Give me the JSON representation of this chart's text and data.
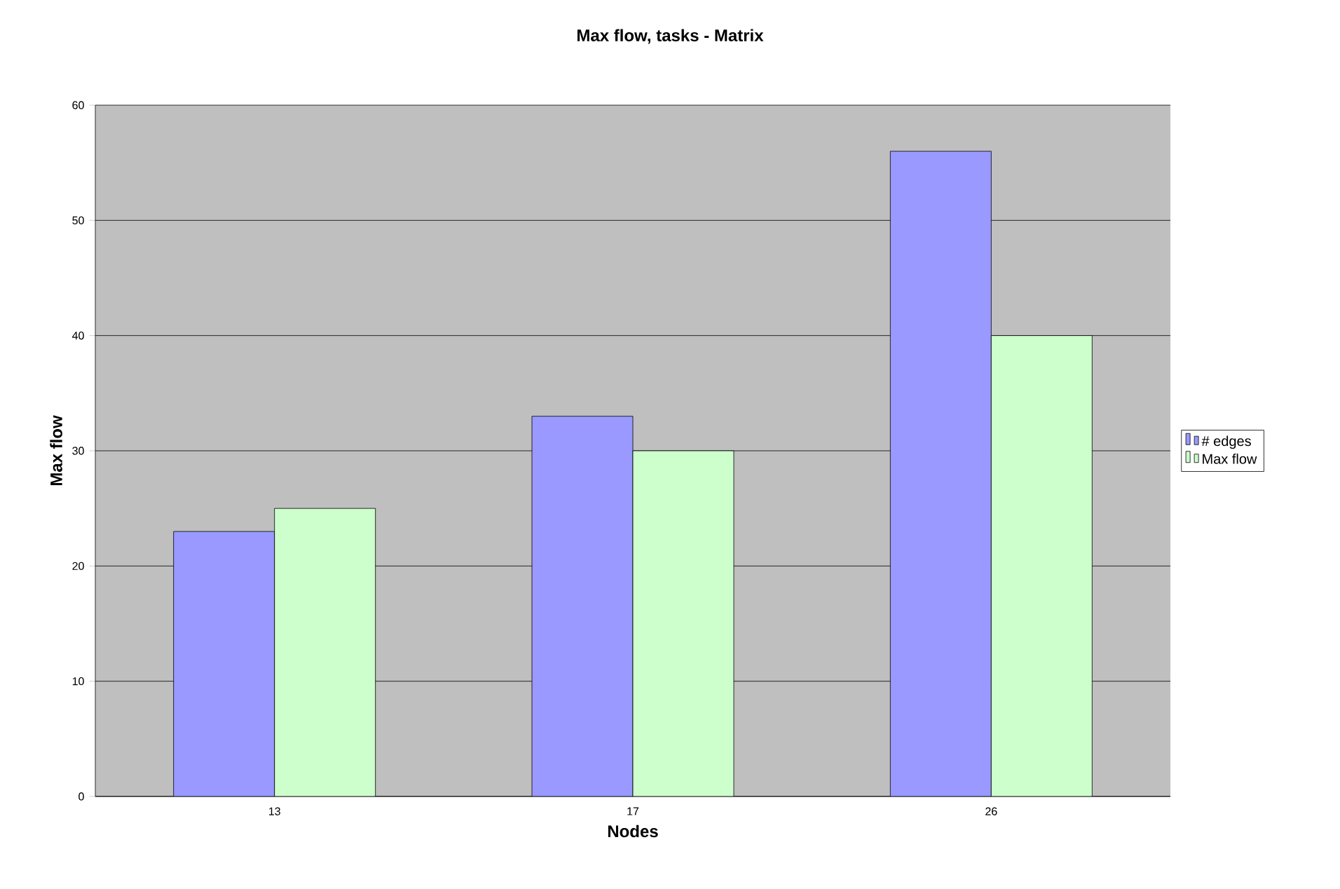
{
  "chart_data": {
    "type": "bar",
    "title": "Max flow, tasks - Matrix",
    "xlabel": "Nodes",
    "ylabel": "Max flow",
    "categories": [
      "13",
      "17",
      "26"
    ],
    "series": [
      {
        "name": "# edges",
        "color": "#9999ff",
        "values": [
          23,
          33,
          56
        ]
      },
      {
        "name": "Max flow",
        "color": "#ccffcc",
        "values": [
          25,
          30,
          40
        ]
      }
    ],
    "ylim": [
      0,
      60
    ],
    "yticks": [
      0,
      10,
      20,
      30,
      40,
      50,
      60
    ],
    "grid": "y",
    "legend": "right"
  }
}
